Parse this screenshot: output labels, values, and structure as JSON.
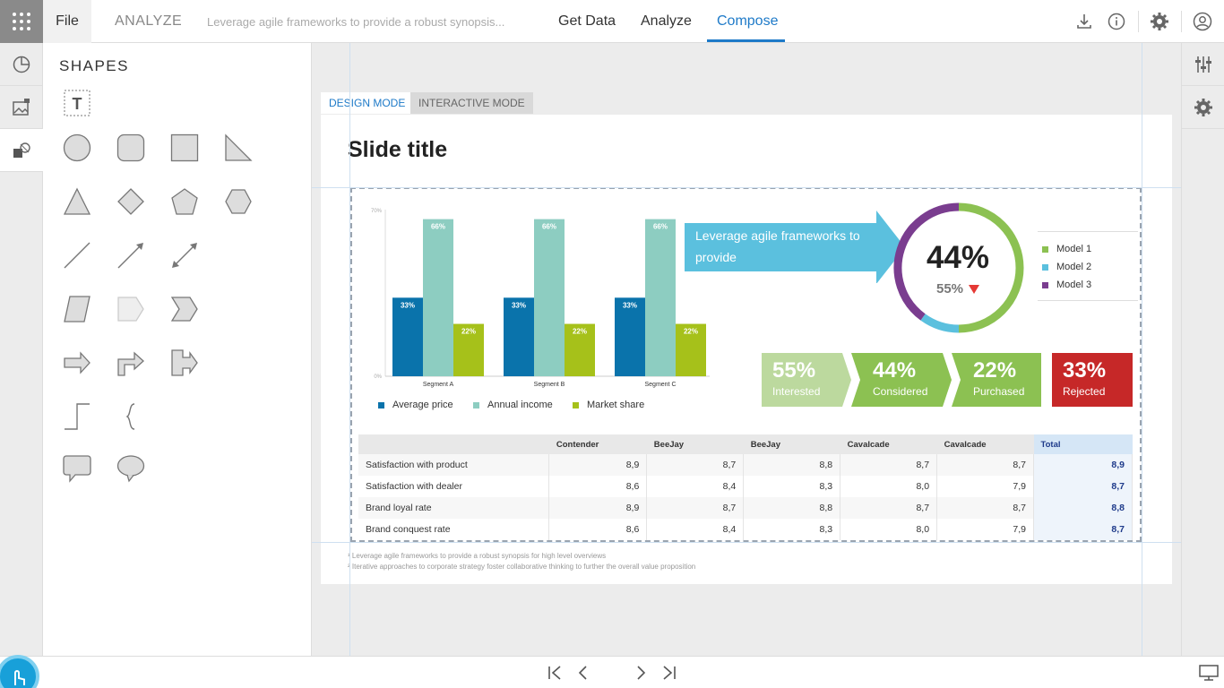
{
  "topbar": {
    "file_label": "File",
    "app_name": "ANALYZE",
    "doc_title": "Leverage agile frameworks to provide a robust synopsis...",
    "tabs": [
      "Get Data",
      "Analyze",
      "Compose"
    ],
    "active_tab": "Compose"
  },
  "shapes_panel": {
    "title": "SHAPES",
    "text_tool": "T"
  },
  "canvas": {
    "modes": [
      "DESIGN MODE",
      "INTERACTIVE MODE"
    ],
    "active_mode": "DESIGN MODE"
  },
  "slide": {
    "title": "Slide title",
    "callout_text": "Leverage agile frameworks to provide",
    "donut": {
      "value_label": "44%",
      "sub_label": "55%",
      "legend": [
        "Model 1",
        "Model 2",
        "Model 3"
      ],
      "colors": [
        "#8cc152",
        "#5bc0de",
        "#7a3d8f"
      ],
      "segments": [
        {
          "name": "Model 1",
          "value": 50
        },
        {
          "name": "Model 2",
          "value": 10
        },
        {
          "name": "Model 3",
          "value": 40
        }
      ]
    },
    "kpis": [
      {
        "value": "55%",
        "label": "Interested",
        "color": "#bcd99e"
      },
      {
        "value": "44%",
        "label": "Considered",
        "color": "#8cc152"
      },
      {
        "value": "22%",
        "label": "Purchased",
        "color": "#8cc152"
      },
      {
        "value": "33%",
        "label": "Rejected",
        "color": "#c62828"
      }
    ],
    "table": {
      "headers": [
        "",
        "Contender",
        "BeeJay",
        "BeeJay",
        "Cavalcade",
        "Cavalcade",
        "Total"
      ],
      "rows": [
        [
          "Satisfaction with product",
          "8,9",
          "8,7",
          "8,8",
          "8,7",
          "8,7",
          "8,9"
        ],
        [
          "Satisfaction with dealer",
          "8,6",
          "8,4",
          "8,3",
          "8,0",
          "7,9",
          "8,7"
        ],
        [
          "Brand loyal rate",
          "8,9",
          "8,7",
          "8,8",
          "8,7",
          "8,7",
          "8,8"
        ],
        [
          "Brand conquest rate",
          "8,6",
          "8,4",
          "8,3",
          "8,0",
          "7,9",
          "8,7"
        ]
      ]
    },
    "footnotes": [
      "¹ Leverage agile frameworks to provide a robust synopsis for high level overviews",
      "² Iterative approaches to corporate strategy foster collaborative thinking to further the overall value proposition"
    ]
  },
  "chart_data": {
    "type": "bar",
    "categories": [
      "Segment A",
      "Segment B",
      "Segment C"
    ],
    "series": [
      {
        "name": "Average price",
        "values": [
          33,
          33,
          33
        ],
        "color": "#0a73ab"
      },
      {
        "name": "Annual income",
        "values": [
          66,
          66,
          66
        ],
        "color": "#8dcdc1"
      },
      {
        "name": "Market share",
        "values": [
          22,
          22,
          22
        ],
        "color": "#a6c11a"
      }
    ],
    "value_labels": [
      "33%",
      "66%",
      "22%"
    ],
    "y_ticks": [
      "70%",
      "0%"
    ],
    "ylim": [
      0,
      70
    ],
    "legend_position": "bottom"
  }
}
